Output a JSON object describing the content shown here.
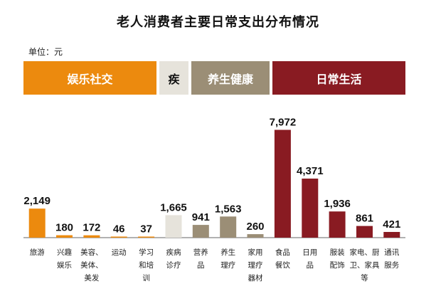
{
  "title": "老人消费者主要日常支出分布情况",
  "unit_label": "单位：元",
  "bands": [
    {
      "label": "娱乐社交",
      "color": "#EC8A0E",
      "text_color": "#FFFFFF"
    },
    {
      "label": "疾",
      "color": "#E6E3DB",
      "text_color": "#111111"
    },
    {
      "label": "养生健康",
      "color": "#9B8E76",
      "text_color": "#FFFFFF"
    },
    {
      "label": "日常生活",
      "color": "#891B22",
      "text_color": "#FFFFFF"
    }
  ],
  "chart_data": {
    "type": "bar",
    "title": "老人消费者主要日常支出分布情况",
    "unit": "元",
    "categories": [
      [
        "旅游"
      ],
      [
        "兴趣",
        "娱乐"
      ],
      [
        "美容、",
        "美体、",
        "美发"
      ],
      [
        "运动"
      ],
      [
        "学习",
        "和培",
        "训"
      ],
      [
        "疾病",
        "诊疗"
      ],
      [
        "营养",
        "品"
      ],
      [
        "养生",
        "理疗"
      ],
      [
        "家用",
        "理疗",
        "器材"
      ],
      [
        "食品",
        "餐饮"
      ],
      [
        "日用",
        "品"
      ],
      [
        "服装",
        "配饰"
      ],
      [
        "家电、厨",
        "卫、家具",
        "等"
      ],
      [
        "通讯",
        "服务"
      ]
    ],
    "value_labels": [
      "2,149",
      "180",
      "172",
      "46",
      "37",
      "1,665",
      "941",
      "1,563",
      "260",
      "7,972",
      "4,371",
      "1,936",
      "861",
      "421"
    ],
    "values": [
      2149,
      180,
      172,
      46,
      37,
      1665,
      941,
      1563,
      260,
      7972,
      4371,
      1936,
      861,
      421
    ],
    "groups": [
      "娱乐社交",
      "娱乐社交",
      "娱乐社交",
      "娱乐社交",
      "娱乐社交",
      "疾",
      "养生健康",
      "养生健康",
      "养生健康",
      "日常生活",
      "日常生活",
      "日常生活",
      "日常生活",
      "日常生活"
    ],
    "colors": [
      "#EC8A0E",
      "#EC8A0E",
      "#EC8A0E",
      "#EC8A0E",
      "#EC8A0E",
      "#E6E3DB",
      "#9B8E76",
      "#9B8E76",
      "#9B8E76",
      "#891B22",
      "#891B22",
      "#891B22",
      "#891B22",
      "#891B22"
    ],
    "ylim": [
      0,
      8000
    ],
    "grid": false,
    "legend": "none"
  }
}
